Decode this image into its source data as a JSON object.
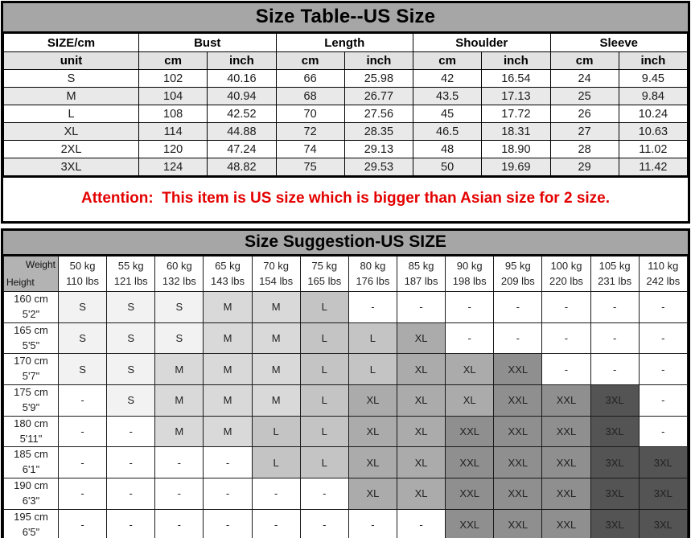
{
  "size_table": {
    "title": "Size Table--US Size",
    "column_groups": [
      "SIZE/cm",
      "Bust",
      "Length",
      "Shoulder",
      "Sleeve"
    ],
    "unit_row": [
      "unit",
      "cm",
      "inch",
      "cm",
      "inch",
      "cm",
      "inch",
      "cm",
      "inch"
    ],
    "rows": [
      {
        "size": "S",
        "values": [
          "102",
          "40.16",
          "66",
          "25.98",
          "42",
          "16.54",
          "24",
          "9.45"
        ],
        "shaded": false
      },
      {
        "size": "M",
        "values": [
          "104",
          "40.94",
          "68",
          "26.77",
          "43.5",
          "17.13",
          "25",
          "9.84"
        ],
        "shaded": true
      },
      {
        "size": "L",
        "values": [
          "108",
          "42.52",
          "70",
          "27.56",
          "45",
          "17.72",
          "26",
          "10.24"
        ],
        "shaded": false
      },
      {
        "size": "XL",
        "values": [
          "114",
          "44.88",
          "72",
          "28.35",
          "46.5",
          "18.31",
          "27",
          "10.63"
        ],
        "shaded": true
      },
      {
        "size": "2XL",
        "values": [
          "120",
          "47.24",
          "74",
          "29.13",
          "48",
          "18.90",
          "28",
          "11.02"
        ],
        "shaded": false
      },
      {
        "size": "3XL",
        "values": [
          "124",
          "48.82",
          "75",
          "29.53",
          "50",
          "19.69",
          "29",
          "11.42"
        ],
        "shaded": true
      }
    ]
  },
  "attention": {
    "text": "Attention:  This item is US size which is bigger than Asian size for 2 size.",
    "color": "#e40000"
  },
  "size_suggestion": {
    "title": "Size Suggestion-US SIZE",
    "corner": {
      "top_right": "Weight",
      "bottom_left": "Height"
    },
    "weight_columns": [
      {
        "kg": "50 kg",
        "lbs": "110 lbs"
      },
      {
        "kg": "55 kg",
        "lbs": "121 lbs"
      },
      {
        "kg": "60 kg",
        "lbs": "132 lbs"
      },
      {
        "kg": "65 kg",
        "lbs": "143 lbs"
      },
      {
        "kg": "70 kg",
        "lbs": "154 lbs"
      },
      {
        "kg": "75 kg",
        "lbs": "165 lbs"
      },
      {
        "kg": "80 kg",
        "lbs": "176 lbs"
      },
      {
        "kg": "85 kg",
        "lbs": "187 lbs"
      },
      {
        "kg": "90 kg",
        "lbs": "198 lbs"
      },
      {
        "kg": "95 kg",
        "lbs": "209 lbs"
      },
      {
        "kg": "100 kg",
        "lbs": "220 lbs"
      },
      {
        "kg": "105 kg",
        "lbs": "231 lbs"
      },
      {
        "kg": "110 kg",
        "lbs": "242 lbs"
      }
    ],
    "height_rows": [
      {
        "cm": "160 cm",
        "ft": "5'2\"",
        "sizes": [
          "S",
          "S",
          "S",
          "M",
          "M",
          "L",
          "-",
          "-",
          "-",
          "-",
          "-",
          "-",
          "-"
        ]
      },
      {
        "cm": "165 cm",
        "ft": "5'5\"",
        "sizes": [
          "S",
          "S",
          "S",
          "M",
          "M",
          "L",
          "L",
          "XL",
          "-",
          "-",
          "-",
          "-",
          "-"
        ]
      },
      {
        "cm": "170 cm",
        "ft": "5'7\"",
        "sizes": [
          "S",
          "S",
          "M",
          "M",
          "M",
          "L",
          "L",
          "XL",
          "XL",
          "XXL",
          "-",
          "-",
          "-"
        ]
      },
      {
        "cm": "175 cm",
        "ft": "5'9\"",
        "sizes": [
          "-",
          "S",
          "M",
          "M",
          "M",
          "L",
          "XL",
          "XL",
          "XL",
          "XXL",
          "XXL",
          "3XL",
          "-"
        ]
      },
      {
        "cm": "180 cm",
        "ft": "5'11\"",
        "sizes": [
          "-",
          "-",
          "M",
          "M",
          "L",
          "L",
          "XL",
          "XL",
          "XXL",
          "XXL",
          "XXL",
          "3XL",
          "-"
        ]
      },
      {
        "cm": "185 cm",
        "ft": "6'1\"",
        "sizes": [
          "-",
          "-",
          "-",
          "-",
          "L",
          "L",
          "XL",
          "XL",
          "XXL",
          "XXL",
          "XXL",
          "3XL",
          "3XL"
        ]
      },
      {
        "cm": "190 cm",
        "ft": "6'3\"",
        "sizes": [
          "-",
          "-",
          "-",
          "-",
          "-",
          "-",
          "XL",
          "XL",
          "XXL",
          "XXL",
          "XXL",
          "3XL",
          "3XL"
        ]
      },
      {
        "cm": "195 cm",
        "ft": "6'5\"",
        "sizes": [
          "-",
          "-",
          "-",
          "-",
          "-",
          "-",
          "-",
          "-",
          "XXL",
          "XXL",
          "XXL",
          "3XL",
          "3XL"
        ]
      }
    ],
    "shades": {
      "S": "#f2f2f2",
      "M": "#d9d9d9",
      "L": "#c4c4c4",
      "XL": "#ababab",
      "XXL": "#8f8f8f",
      "3XL": "#545454",
      "-": "#ffffff"
    }
  },
  "colors": {
    "title_bar": "#a6a6a6",
    "unit_row": "#e2e2e2",
    "alt_row": "#e9e9e9",
    "corner_bg": "#b3b3b3",
    "attention_red": "#e40000",
    "border": "#000000"
  }
}
